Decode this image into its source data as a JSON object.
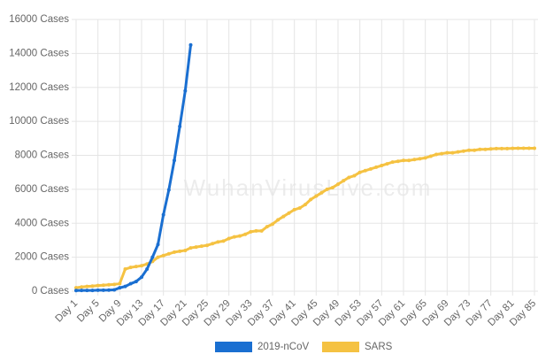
{
  "chart_data": {
    "type": "line",
    "watermark": "WuhanVirusLive.com",
    "categories": [
      "Day 1",
      null,
      null,
      null,
      "Day 5",
      null,
      null,
      null,
      "Day 9",
      null,
      null,
      null,
      "Day 13",
      null,
      null,
      null,
      "Day 17",
      null,
      null,
      null,
      "Day 21",
      null,
      null,
      null,
      "Day 25",
      null,
      null,
      null,
      "Day 29",
      null,
      null,
      null,
      "Day 33",
      null,
      null,
      null,
      "Day 37",
      null,
      null,
      null,
      "Day 41",
      null,
      null,
      null,
      "Day 45",
      null,
      null,
      null,
      "Day 49",
      null,
      null,
      null,
      "Day 53",
      null,
      null,
      null,
      "Day 57",
      null,
      null,
      null,
      "Day 61",
      null,
      null,
      null,
      "Day 65",
      null,
      null,
      null,
      "Day 69",
      null,
      null,
      null,
      "Day 73",
      null,
      null,
      null,
      "Day 77",
      null,
      null,
      null,
      "Day 81",
      null,
      null,
      null,
      "Day 85"
    ],
    "series": [
      {
        "name": "2019-nCoV",
        "color": "#1a6fd1",
        "values": [
          40,
          45,
          45,
          45,
          60,
          60,
          65,
          80,
          200,
          280,
          440,
          570,
          830,
          1300,
          2000,
          2750,
          4500,
          5970,
          7700,
          9700,
          11800,
          14500,
          null,
          null,
          null,
          null,
          null,
          null,
          null,
          null,
          null,
          null,
          null,
          null,
          null,
          null,
          null,
          null,
          null,
          null,
          null,
          null,
          null,
          null,
          null,
          null,
          null,
          null,
          null,
          null,
          null,
          null,
          null,
          null,
          null,
          null,
          null,
          null,
          null,
          null,
          null,
          null,
          null,
          null,
          null,
          null,
          null,
          null,
          null,
          null,
          null,
          null,
          null,
          null,
          null,
          null,
          null,
          null,
          null,
          null,
          null,
          null,
          null,
          null,
          null
        ]
      },
      {
        "name": "SARS",
        "color": "#f5c242",
        "values": [
          200,
          250,
          280,
          300,
          330,
          350,
          380,
          400,
          450,
          1300,
          1400,
          1450,
          1500,
          1600,
          1750,
          2000,
          2100,
          2200,
          2300,
          2350,
          2400,
          2550,
          2600,
          2650,
          2700,
          2800,
          2900,
          2950,
          3100,
          3200,
          3250,
          3350,
          3500,
          3550,
          3550,
          3800,
          3950,
          4200,
          4400,
          4600,
          4800,
          4900,
          5100,
          5400,
          5600,
          5800,
          6000,
          6100,
          6300,
          6500,
          6700,
          6800,
          7000,
          7100,
          7200,
          7300,
          7400,
          7500,
          7600,
          7650,
          7700,
          7700,
          7750,
          7800,
          7850,
          7950,
          8050,
          8100,
          8150,
          8150,
          8200,
          8250,
          8300,
          8300,
          8350,
          8350,
          8380,
          8400,
          8400,
          8400,
          8410,
          8420,
          8420,
          8420,
          8420
        ]
      }
    ],
    "ylim": [
      0,
      16000
    ],
    "yticks": [
      {
        "value": 0,
        "label": "0 Cases"
      },
      {
        "value": 2000,
        "label": "2000 Cases"
      },
      {
        "value": 4000,
        "label": "4000 Cases"
      },
      {
        "value": 6000,
        "label": "6000 Cases"
      },
      {
        "value": 8000,
        "label": "8000 Cases"
      },
      {
        "value": 10000,
        "label": "10000 Cases"
      },
      {
        "value": 12000,
        "label": "12000 Cases"
      },
      {
        "value": 14000,
        "label": "14000 Cases"
      },
      {
        "value": 16000,
        "label": "16000 Cases"
      }
    ],
    "grid": true,
    "legend": "bottom"
  }
}
